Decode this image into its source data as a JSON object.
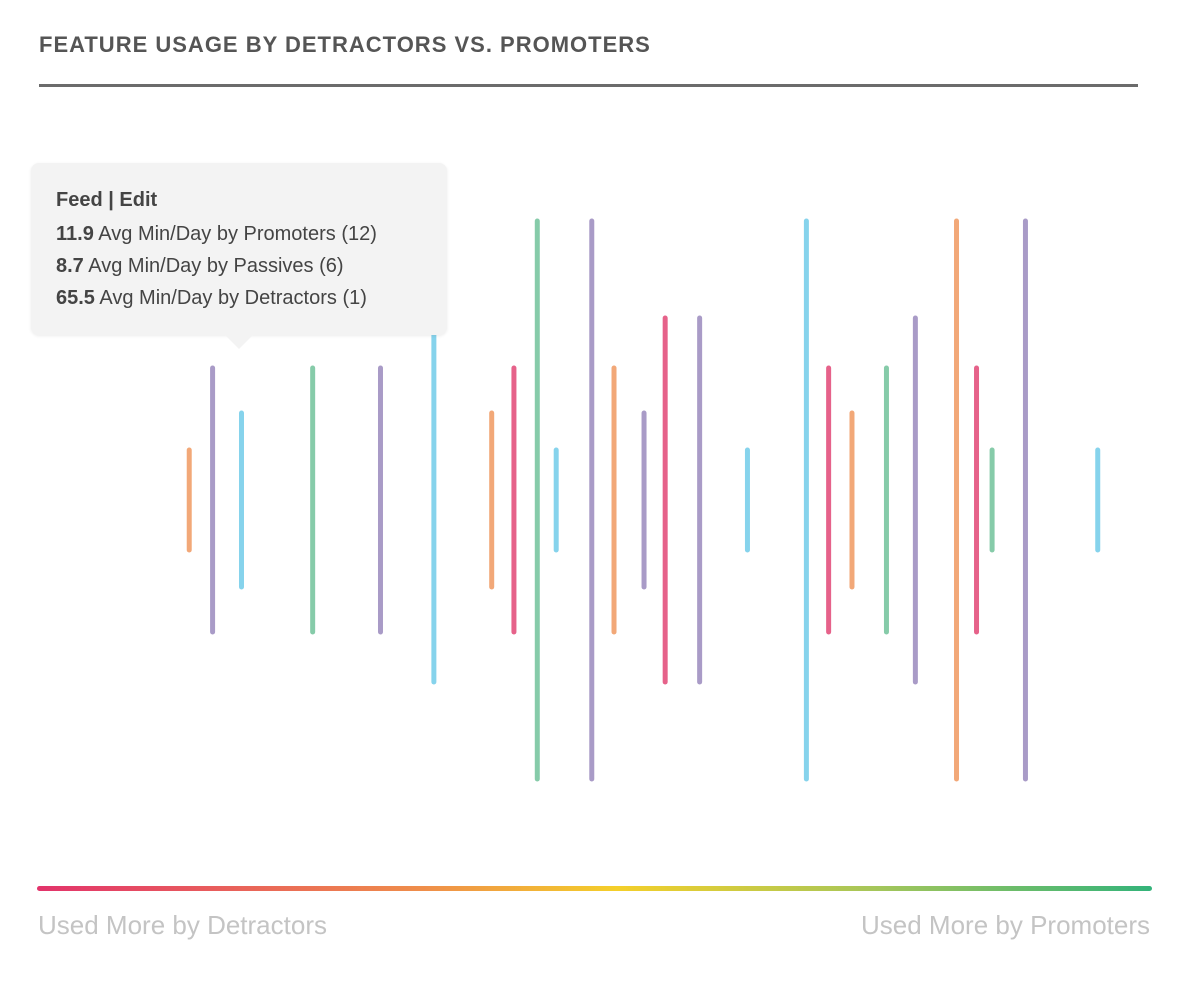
{
  "title": "FEATURE USAGE BY DETRACTORS VS. PROMOTERS",
  "tooltip": {
    "title": "Feed | Edit",
    "rows": [
      {
        "value": "11.9",
        "text": " Avg Min/Day by Promoters (12)"
      },
      {
        "value": "8.7",
        "text": " Avg Min/Day by Passives (6)"
      },
      {
        "value": "65.5",
        "text": " Avg Min/Day by Detractors (1)"
      }
    ]
  },
  "axis": {
    "left_label": "Used More by Detractors",
    "right_label": "Used More by Promoters"
  },
  "colors": {
    "orange": "#f2a878",
    "purple": "#a99bc7",
    "blue": "#86d3ec",
    "green": "#86cba9",
    "pink": "#e6628a"
  },
  "chart_data": {
    "type": "bar",
    "title": "FEATURE USAGE BY DETRACTORS VS. PROMOTERS",
    "xlabel_left": "Used More by Detractors",
    "xlabel_right": "Used More by Promoters",
    "xlim": [
      0,
      100
    ],
    "magnitude_range": [
      0,
      5
    ],
    "grid": false,
    "points": [
      {
        "x": 13.6,
        "magnitude": 1,
        "color": "orange"
      },
      {
        "x": 15.7,
        "magnitude": 3,
        "color": "purple"
      },
      {
        "x": 18.3,
        "magnitude": 2,
        "color": "blue"
      },
      {
        "x": 24.7,
        "magnitude": 3,
        "color": "green"
      },
      {
        "x": 30.8,
        "magnitude": 3,
        "color": "purple"
      },
      {
        "x": 35.6,
        "magnitude": 4,
        "color": "blue"
      },
      {
        "x": 40.8,
        "magnitude": 2,
        "color": "orange"
      },
      {
        "x": 42.8,
        "magnitude": 3,
        "color": "pink"
      },
      {
        "x": 44.9,
        "magnitude": 5,
        "color": "green"
      },
      {
        "x": 46.6,
        "magnitude": 1,
        "color": "blue"
      },
      {
        "x": 49.8,
        "magnitude": 5,
        "color": "purple"
      },
      {
        "x": 51.8,
        "magnitude": 3,
        "color": "orange"
      },
      {
        "x": 54.5,
        "magnitude": 2,
        "color": "purple"
      },
      {
        "x": 56.4,
        "magnitude": 4,
        "color": "pink"
      },
      {
        "x": 59.5,
        "magnitude": 4,
        "color": "purple"
      },
      {
        "x": 63.8,
        "magnitude": 1,
        "color": "blue"
      },
      {
        "x": 69.1,
        "magnitude": 5,
        "color": "blue"
      },
      {
        "x": 71.1,
        "magnitude": 3,
        "color": "pink"
      },
      {
        "x": 73.2,
        "magnitude": 2,
        "color": "orange"
      },
      {
        "x": 76.3,
        "magnitude": 3,
        "color": "green"
      },
      {
        "x": 78.9,
        "magnitude": 4,
        "color": "purple"
      },
      {
        "x": 82.6,
        "magnitude": 5,
        "color": "orange"
      },
      {
        "x": 84.4,
        "magnitude": 3,
        "color": "pink"
      },
      {
        "x": 85.8,
        "magnitude": 1,
        "color": "green"
      },
      {
        "x": 88.8,
        "magnitude": 5,
        "color": "purple"
      },
      {
        "x": 95.3,
        "magnitude": 1,
        "color": "blue"
      }
    ]
  }
}
